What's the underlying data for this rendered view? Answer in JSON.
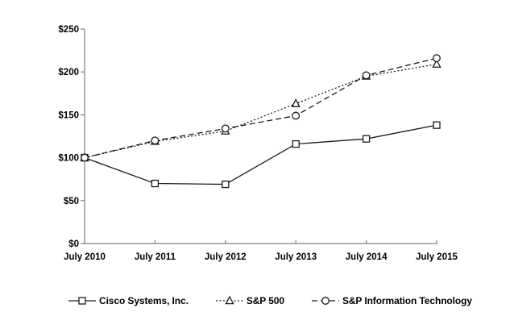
{
  "chart_data": {
    "type": "line",
    "title": "",
    "xlabel": "",
    "ylabel": "",
    "categories": [
      "July 2010",
      "July 2011",
      "July 2012",
      "July 2013",
      "July 2014",
      "July 2015"
    ],
    "series": [
      {
        "name": "Cisco Systems, Inc.",
        "marker": "square",
        "line_style": "solid",
        "values": [
          100,
          70,
          69,
          116,
          122,
          138
        ]
      },
      {
        "name": "S&P 500",
        "marker": "triangle",
        "line_style": "dotted",
        "values": [
          100,
          119,
          131,
          163,
          195,
          209
        ]
      },
      {
        "name": "S&P Information Technology",
        "marker": "circle",
        "line_style": "dashed",
        "values": [
          100,
          120,
          134,
          149,
          196,
          216
        ]
      }
    ],
    "ylim": [
      0,
      250
    ],
    "y_ticks": [
      0,
      50,
      100,
      150,
      200,
      250
    ],
    "y_tick_labels": [
      "$0",
      "$50",
      "$100",
      "$150",
      "$200",
      "$250"
    ],
    "grid": false,
    "legend_position": "bottom",
    "colors": {
      "series_line": "#1a1a1a",
      "marker_fill": "#ffffff",
      "axis_line": "#808080",
      "text": "#000000",
      "background": "#ffffff"
    }
  }
}
